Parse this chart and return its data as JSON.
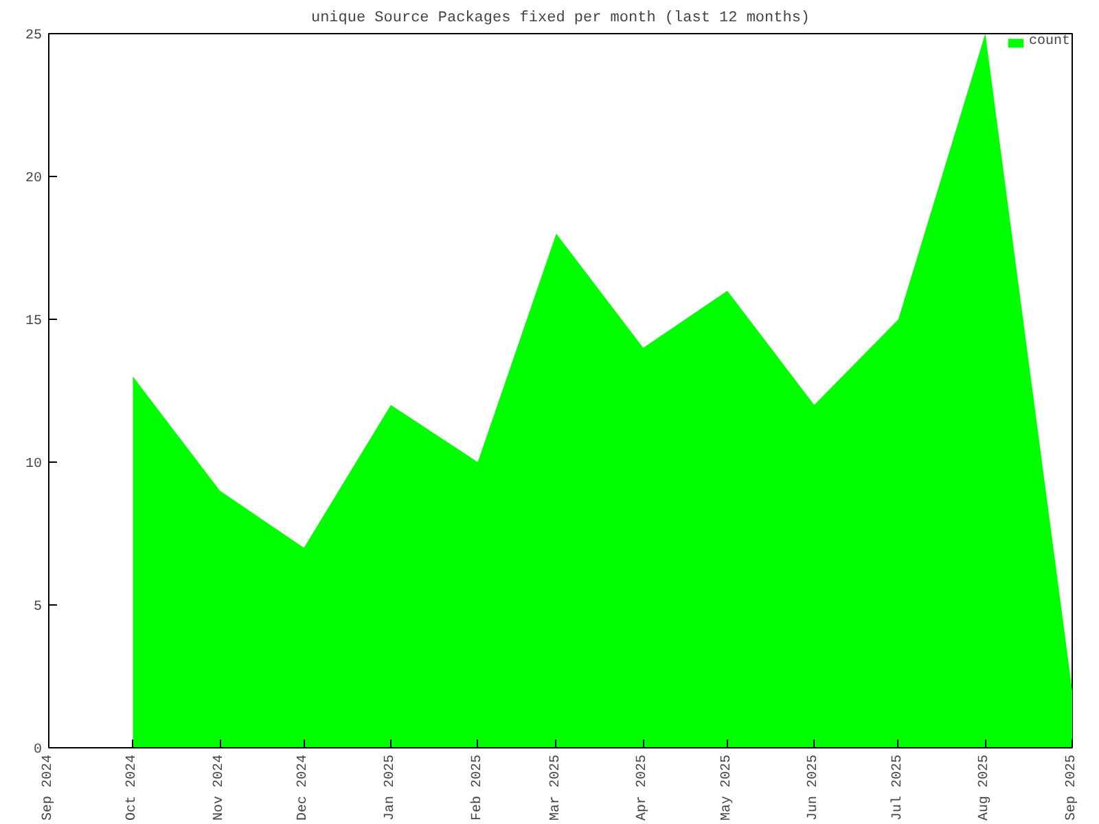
{
  "chart_data": {
    "type": "area",
    "title": "unique Source Packages fixed per month (last 12 months)",
    "x": [
      "2024-10-01",
      "2024-11-01",
      "2024-12-01",
      "2025-01-01",
      "2025-02-01",
      "2025-03-01",
      "2025-04-01",
      "2025-05-01",
      "2025-06-01",
      "2025-07-01",
      "2025-08-01",
      "2025-09-01"
    ],
    "series": [
      {
        "name": "count",
        "color": "#00ff00",
        "values": [
          13,
          9,
          7,
          12,
          10,
          18,
          14,
          16,
          12,
          15,
          25,
          2
        ]
      }
    ],
    "xlim": [
      "2024-09-01",
      "2025-09-01"
    ],
    "xticks": [
      {
        "value": "2024-09-01",
        "label": "Sep 2024"
      },
      {
        "value": "2024-10-01",
        "label": "Oct 2024"
      },
      {
        "value": "2024-11-01",
        "label": "Nov 2024"
      },
      {
        "value": "2024-12-01",
        "label": "Dec 2024"
      },
      {
        "value": "2025-01-01",
        "label": "Jan 2025"
      },
      {
        "value": "2025-02-01",
        "label": "Feb 2025"
      },
      {
        "value": "2025-03-01",
        "label": "Mar 2025"
      },
      {
        "value": "2025-04-01",
        "label": "Apr 2025"
      },
      {
        "value": "2025-05-01",
        "label": "May 2025"
      },
      {
        "value": "2025-06-01",
        "label": "Jun 2025"
      },
      {
        "value": "2025-07-01",
        "label": "Jul 2025"
      },
      {
        "value": "2025-08-01",
        "label": "Aug 2025"
      },
      {
        "value": "2025-09-01",
        "label": "Sep 2025"
      }
    ],
    "ylim": [
      0,
      25
    ],
    "yticks": [
      0,
      5,
      10,
      15,
      20,
      25
    ],
    "grid": false,
    "legend": "top right"
  }
}
